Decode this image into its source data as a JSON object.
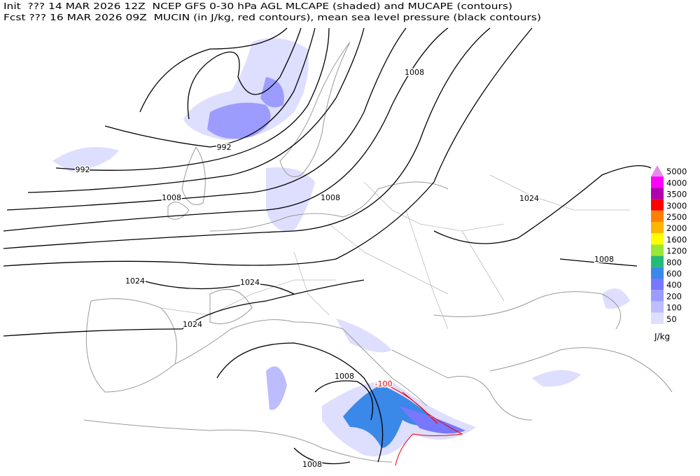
{
  "header": {
    "line1": "Init  ??? 14 MAR 2026 12Z  NCEP GFS 0-30 hPa AGL MLCAPE (shaded) and MUCAPE (contours)",
    "line2": "Fcst ??? 16 MAR 2026 09Z  MUCIN (in J/kg, red contours), mean sea level pressure (black contours)"
  },
  "contour_labels": [
    "992",
    "992",
    "1008",
    "1008",
    "1008",
    "1024",
    "1008",
    "1024",
    "1024",
    "1024",
    "1008",
    "-100",
    "1008"
  ],
  "legend": {
    "unit": "J/kg",
    "levels": [
      {
        "value": 5000,
        "color": "#e68ce6"
      },
      {
        "value": 4000,
        "color": "#ff00ff"
      },
      {
        "value": 3500,
        "color": "#b000b0"
      },
      {
        "value": 3000,
        "color": "#ff0000"
      },
      {
        "value": 2500,
        "color": "#ff8000"
      },
      {
        "value": 2000,
        "color": "#ffb400"
      },
      {
        "value": 1600,
        "color": "#ffff00"
      },
      {
        "value": 1200,
        "color": "#99e633"
      },
      {
        "value": 800,
        "color": "#22bb77"
      },
      {
        "value": 600,
        "color": "#3a88e8"
      },
      {
        "value": 400,
        "color": "#7777ff"
      },
      {
        "value": 200,
        "color": "#9c9cff"
      },
      {
        "value": 100,
        "color": "#bcbcff"
      },
      {
        "value": 50,
        "color": "#dedeff"
      }
    ]
  }
}
